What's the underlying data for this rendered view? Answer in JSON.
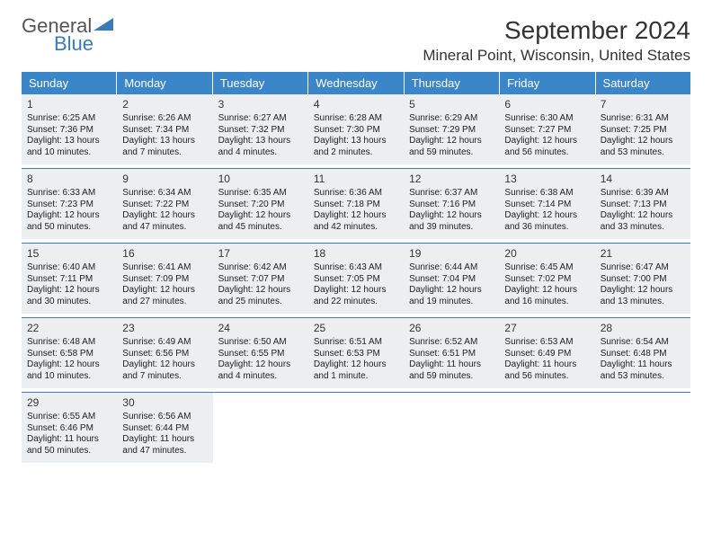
{
  "brand": {
    "top": "General",
    "bottom": "Blue"
  },
  "title": "September 2024",
  "location": "Mineral Point, Wisconsin, United States",
  "accent_color": "#3a86c8",
  "accent_dark": "#3a7ab8",
  "cell_bg": "#eceeef",
  "day_names": [
    "Sunday",
    "Monday",
    "Tuesday",
    "Wednesday",
    "Thursday",
    "Friday",
    "Saturday"
  ],
  "weeks": [
    [
      {
        "n": "1",
        "sr": "6:25 AM",
        "ss": "7:36 PM",
        "dl": "13 hours and 10 minutes."
      },
      {
        "n": "2",
        "sr": "6:26 AM",
        "ss": "7:34 PM",
        "dl": "13 hours and 7 minutes."
      },
      {
        "n": "3",
        "sr": "6:27 AM",
        "ss": "7:32 PM",
        "dl": "13 hours and 4 minutes."
      },
      {
        "n": "4",
        "sr": "6:28 AM",
        "ss": "7:30 PM",
        "dl": "13 hours and 2 minutes."
      },
      {
        "n": "5",
        "sr": "6:29 AM",
        "ss": "7:29 PM",
        "dl": "12 hours and 59 minutes."
      },
      {
        "n": "6",
        "sr": "6:30 AM",
        "ss": "7:27 PM",
        "dl": "12 hours and 56 minutes."
      },
      {
        "n": "7",
        "sr": "6:31 AM",
        "ss": "7:25 PM",
        "dl": "12 hours and 53 minutes."
      }
    ],
    [
      {
        "n": "8",
        "sr": "6:33 AM",
        "ss": "7:23 PM",
        "dl": "12 hours and 50 minutes."
      },
      {
        "n": "9",
        "sr": "6:34 AM",
        "ss": "7:22 PM",
        "dl": "12 hours and 47 minutes."
      },
      {
        "n": "10",
        "sr": "6:35 AM",
        "ss": "7:20 PM",
        "dl": "12 hours and 45 minutes."
      },
      {
        "n": "11",
        "sr": "6:36 AM",
        "ss": "7:18 PM",
        "dl": "12 hours and 42 minutes."
      },
      {
        "n": "12",
        "sr": "6:37 AM",
        "ss": "7:16 PM",
        "dl": "12 hours and 39 minutes."
      },
      {
        "n": "13",
        "sr": "6:38 AM",
        "ss": "7:14 PM",
        "dl": "12 hours and 36 minutes."
      },
      {
        "n": "14",
        "sr": "6:39 AM",
        "ss": "7:13 PM",
        "dl": "12 hours and 33 minutes."
      }
    ],
    [
      {
        "n": "15",
        "sr": "6:40 AM",
        "ss": "7:11 PM",
        "dl": "12 hours and 30 minutes."
      },
      {
        "n": "16",
        "sr": "6:41 AM",
        "ss": "7:09 PM",
        "dl": "12 hours and 27 minutes."
      },
      {
        "n": "17",
        "sr": "6:42 AM",
        "ss": "7:07 PM",
        "dl": "12 hours and 25 minutes."
      },
      {
        "n": "18",
        "sr": "6:43 AM",
        "ss": "7:05 PM",
        "dl": "12 hours and 22 minutes."
      },
      {
        "n": "19",
        "sr": "6:44 AM",
        "ss": "7:04 PM",
        "dl": "12 hours and 19 minutes."
      },
      {
        "n": "20",
        "sr": "6:45 AM",
        "ss": "7:02 PM",
        "dl": "12 hours and 16 minutes."
      },
      {
        "n": "21",
        "sr": "6:47 AM",
        "ss": "7:00 PM",
        "dl": "12 hours and 13 minutes."
      }
    ],
    [
      {
        "n": "22",
        "sr": "6:48 AM",
        "ss": "6:58 PM",
        "dl": "12 hours and 10 minutes."
      },
      {
        "n": "23",
        "sr": "6:49 AM",
        "ss": "6:56 PM",
        "dl": "12 hours and 7 minutes."
      },
      {
        "n": "24",
        "sr": "6:50 AM",
        "ss": "6:55 PM",
        "dl": "12 hours and 4 minutes."
      },
      {
        "n": "25",
        "sr": "6:51 AM",
        "ss": "6:53 PM",
        "dl": "12 hours and 1 minute."
      },
      {
        "n": "26",
        "sr": "6:52 AM",
        "ss": "6:51 PM",
        "dl": "11 hours and 59 minutes."
      },
      {
        "n": "27",
        "sr": "6:53 AM",
        "ss": "6:49 PM",
        "dl": "11 hours and 56 minutes."
      },
      {
        "n": "28",
        "sr": "6:54 AM",
        "ss": "6:48 PM",
        "dl": "11 hours and 53 minutes."
      }
    ],
    [
      {
        "n": "29",
        "sr": "6:55 AM",
        "ss": "6:46 PM",
        "dl": "11 hours and 50 minutes."
      },
      {
        "n": "30",
        "sr": "6:56 AM",
        "ss": "6:44 PM",
        "dl": "11 hours and 47 minutes."
      },
      null,
      null,
      null,
      null,
      null
    ]
  ],
  "labels": {
    "sunrise": "Sunrise:",
    "sunset": "Sunset:",
    "daylight": "Daylight:"
  }
}
